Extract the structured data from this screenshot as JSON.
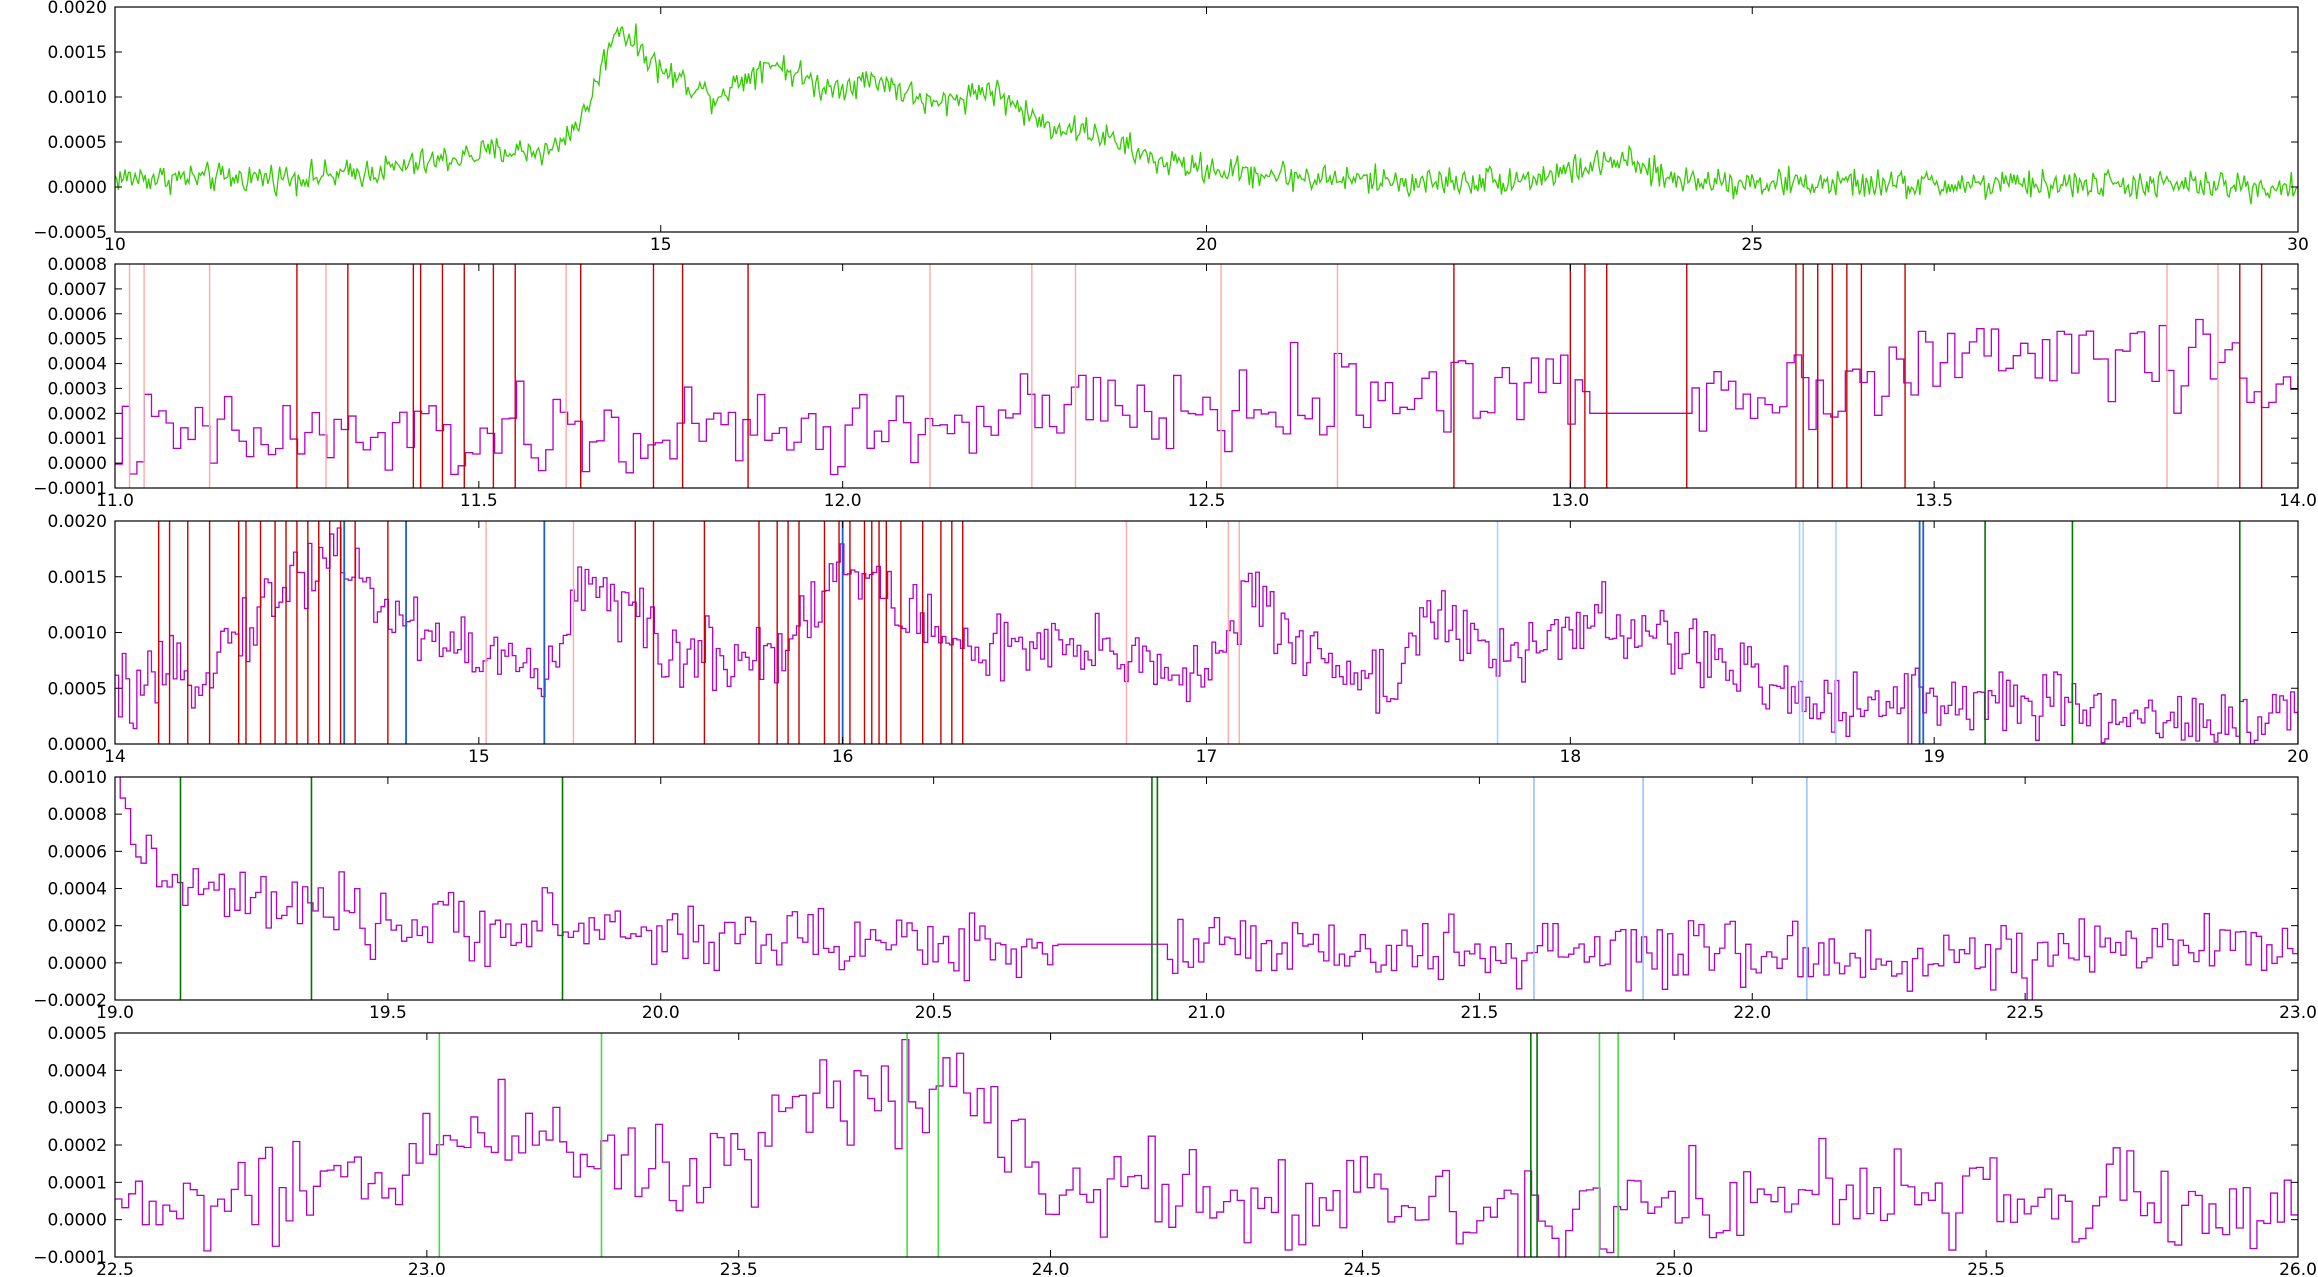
{
  "chart_data": [
    {
      "type": "line",
      "xlim": [
        10,
        30
      ],
      "ylim": [
        -0.0005,
        0.002
      ],
      "xticks": [
        "10",
        "15",
        "20",
        "25",
        "30"
      ],
      "yticks": [
        "−0.0005",
        "0.0000",
        "0.0005",
        "0.0010",
        "0.0015",
        "0.0020"
      ],
      "grid": false,
      "series": [
        {
          "color": "#33cc00",
          "step": false,
          "knots": [
            [
              10,
              0.0001
            ],
            [
              11,
              0.0001
            ],
            [
              12,
              0.00012
            ],
            [
              12.5,
              0.0002
            ],
            [
              13,
              0.0003
            ],
            [
              13.5,
              0.0004
            ],
            [
              14,
              0.0004
            ],
            [
              14.3,
              0.0008
            ],
            [
              14.6,
              0.0018
            ],
            [
              15,
              0.0013
            ],
            [
              15.5,
              0.001
            ],
            [
              16,
              0.0014
            ],
            [
              16.5,
              0.0011
            ],
            [
              17,
              0.0012
            ],
            [
              17.5,
              0.0009
            ],
            [
              18,
              0.0011
            ],
            [
              18.5,
              0.0007
            ],
            [
              19,
              0.0006
            ],
            [
              19.5,
              0.0003
            ],
            [
              20,
              0.0002
            ],
            [
              21,
              0.0001
            ],
            [
              22,
              5e-05
            ],
            [
              23,
              0.0001
            ],
            [
              23.4,
              0.0002
            ],
            [
              23.8,
              0.0003
            ],
            [
              24.2,
              0.0001
            ],
            [
              25,
              5e-05
            ],
            [
              26,
              3e-05
            ],
            [
              27,
              2e-05
            ],
            [
              28,
              3e-05
            ],
            [
              29,
              2e-05
            ],
            [
              30,
              0.0
            ]
          ],
          "noise": 8e-05,
          "n_points": 1300
        }
      ],
      "vlines": []
    },
    {
      "type": "line",
      "xlim": [
        11.0,
        14.0
      ],
      "ylim": [
        -0.0001,
        0.0008
      ],
      "xticks": [
        "11.0",
        "11.5",
        "12.0",
        "12.5",
        "13.0",
        "13.5",
        "14.0"
      ],
      "yticks": [
        "−0.0001",
        "0.0000",
        "0.0001",
        "0.0002",
        "0.0003",
        "0.0004",
        "0.0005",
        "0.0006",
        "0.0007",
        "0.0008"
      ],
      "grid": false,
      "series": [
        {
          "color": "#b400c8",
          "step": true,
          "knots": [
            [
              11,
              0.0001
            ],
            [
              11.5,
              0.0001
            ],
            [
              12,
              0.00012
            ],
            [
              12.3,
              0.0002
            ],
            [
              12.5,
              0.0002
            ],
            [
              12.8,
              0.0003
            ],
            [
              13,
              0.0003
            ],
            [
              13.3,
              0.0003
            ],
            [
              13.5,
              0.0004
            ],
            [
              13.7,
              0.00045
            ],
            [
              14,
              0.00035
            ]
          ],
          "noise": 9e-05,
          "n_points": 300,
          "flat_segments": [
            [
              13.02,
              13.16,
              0.0002
            ]
          ]
        }
      ],
      "vlines": [
        {
          "x": [
            11.02,
            11.04,
            11.13,
            11.29,
            11.62,
            12.12,
            12.26,
            12.32,
            12.52,
            12.68,
            13.82,
            13.89
          ],
          "color": "#ffaaaa",
          "width": 1.4
        },
        {
          "x": [
            11.25,
            11.32,
            11.41,
            11.42,
            11.45,
            11.48,
            11.52,
            11.55,
            11.64,
            11.74,
            11.78,
            11.87,
            12.84,
            13.0,
            13.02,
            13.05,
            13.16,
            13.31,
            13.32,
            13.34,
            13.36,
            13.38,
            13.4,
            13.46,
            13.92,
            13.95
          ],
          "color": "#cc0000",
          "width": 1.4
        }
      ]
    },
    {
      "type": "line",
      "xlim": [
        14,
        20
      ],
      "ylim": [
        0.0,
        0.002
      ],
      "xticks": [
        "14",
        "15",
        "16",
        "17",
        "18",
        "19",
        "20"
      ],
      "yticks": [
        "0.0000",
        "0.0005",
        "0.0010",
        "0.0015",
        "0.0020"
      ],
      "grid": false,
      "series": [
        {
          "color": "#b400c8",
          "step": true,
          "knots": [
            [
              14,
              0.0004
            ],
            [
              14.2,
              0.0006
            ],
            [
              14.4,
              0.0012
            ],
            [
              14.6,
              0.0018
            ],
            [
              14.7,
              0.0013
            ],
            [
              14.85,
              0.001
            ],
            [
              15,
              0.0008
            ],
            [
              15.2,
              0.0006
            ],
            [
              15.3,
              0.0016
            ],
            [
              15.5,
              0.0008
            ],
            [
              15.8,
              0.0008
            ],
            [
              16,
              0.0016
            ],
            [
              16.3,
              0.0009
            ],
            [
              16.6,
              0.0008
            ],
            [
              16.8,
              0.0008
            ],
            [
              17,
              0.0006
            ],
            [
              17.1,
              0.0013
            ],
            [
              17.3,
              0.0008
            ],
            [
              17.5,
              0.0005
            ],
            [
              17.6,
              0.0012
            ],
            [
              17.8,
              0.0007
            ],
            [
              18,
              0.0011
            ],
            [
              18.3,
              0.0009
            ],
            [
              18.6,
              0.0004
            ],
            [
              18.9,
              0.0004
            ],
            [
              19.1,
              0.0004
            ],
            [
              19.5,
              0.00025
            ],
            [
              20,
              0.0002
            ]
          ],
          "noise": 0.00016,
          "n_points": 600
        }
      ],
      "vlines": [
        {
          "x": [
            15.02,
            15.26,
            16.78,
            17.06,
            17.09
          ],
          "color": "#ffaaaa",
          "width": 1.4
        },
        {
          "x": [
            14.12,
            14.15,
            14.2,
            14.26,
            14.34,
            14.36,
            14.4,
            14.44,
            14.47,
            14.5,
            14.53,
            14.56,
            14.59,
            14.62,
            14.66,
            14.75,
            15.43,
            15.48,
            15.62,
            15.77,
            15.82,
            15.85,
            15.88,
            15.95,
            15.99,
            16.02,
            16.06,
            16.08,
            16.1,
            16.12,
            16.16,
            16.22,
            16.27,
            16.3,
            16.33
          ],
          "color": "#cc0000",
          "width": 1.4
        },
        {
          "x": [
            17.8,
            18.63,
            18.64,
            18.73
          ],
          "color": "#aad4ff",
          "width": 1.6
        },
        {
          "x": [
            14.63,
            14.8,
            15.18,
            16.0,
            18.96,
            18.97
          ],
          "color": "#1f5fcc",
          "width": 1.8
        },
        {
          "x": [
            19.14,
            19.38,
            19.84
          ],
          "color": "#007700",
          "width": 1.6
        }
      ]
    },
    {
      "type": "line",
      "xlim": [
        19.0,
        23.0
      ],
      "ylim": [
        -0.0002,
        0.001
      ],
      "xticks": [
        "19.0",
        "19.5",
        "20.0",
        "20.5",
        "21.0",
        "21.5",
        "22.0",
        "22.5",
        "23.0"
      ],
      "yticks": [
        "−0.0002",
        "0.0000",
        "0.0002",
        "0.0004",
        "0.0006",
        "0.0008",
        "0.0010"
      ],
      "grid": false,
      "series": [
        {
          "color": "#b400c8",
          "step": true,
          "knots": [
            [
              19,
              0.0009
            ],
            [
              19.05,
              0.0006
            ],
            [
              19.1,
              0.0004
            ],
            [
              19.3,
              0.0003
            ],
            [
              19.5,
              0.0002
            ],
            [
              19.8,
              0.0002
            ],
            [
              20,
              0.00015
            ],
            [
              20.5,
              0.0001
            ],
            [
              20.9,
              0.0001
            ],
            [
              21.2,
              5e-05
            ],
            [
              21.5,
              5e-05
            ],
            [
              22,
              3e-05
            ],
            [
              22.5,
              2e-05
            ],
            [
              22.9,
              0.0001
            ],
            [
              23,
              0.0002
            ]
          ],
          "noise": 9e-05,
          "n_points": 420,
          "flat_segments": [
            [
              20.72,
              20.92,
              0.0001
            ]
          ]
        }
      ],
      "vlines": [
        {
          "x": [
            21.6,
            21.8,
            22.1
          ],
          "color": "#99c2ff",
          "width": 1.6
        },
        {
          "x": [
            19.12,
            19.36,
            19.82,
            20.9,
            20.91
          ],
          "color": "#007700",
          "width": 1.6
        }
      ]
    },
    {
      "type": "line",
      "xlim": [
        22.5,
        26.0
      ],
      "ylim": [
        -0.0001,
        0.0005
      ],
      "xticks": [
        "22.5",
        "23.0",
        "23.5",
        "24.0",
        "24.5",
        "25.0",
        "25.5",
        "26.0"
      ],
      "yticks": [
        "−0.0001",
        "0.0000",
        "0.0001",
        "0.0002",
        "0.0003",
        "0.0004",
        "0.0005"
      ],
      "grid": false,
      "series": [
        {
          "color": "#b400c8",
          "step": true,
          "knots": [
            [
              22.5,
              3e-05
            ],
            [
              22.8,
              5e-05
            ],
            [
              23,
              0.0002
            ],
            [
              23.2,
              0.00025
            ],
            [
              23.4,
              0.0001
            ],
            [
              23.6,
              0.0003
            ],
            [
              23.75,
              0.00035
            ],
            [
              23.85,
              0.0004
            ],
            [
              24,
              0.0001
            ],
            [
              24.5,
              5e-05
            ],
            [
              24.8,
              4e-05
            ],
            [
              25,
              6e-05
            ],
            [
              25.5,
              5e-05
            ],
            [
              26,
              3e-05
            ]
          ],
          "noise": 7e-05,
          "n_points": 320
        }
      ],
      "vlines": [
        {
          "x": [
            23.02,
            23.28,
            23.77,
            23.82,
            24.88,
            24.91
          ],
          "color": "#44dd44",
          "width": 1.6
        },
        {
          "x": [
            24.77,
            24.78
          ],
          "color": "#007700",
          "width": 1.6
        }
      ]
    }
  ]
}
